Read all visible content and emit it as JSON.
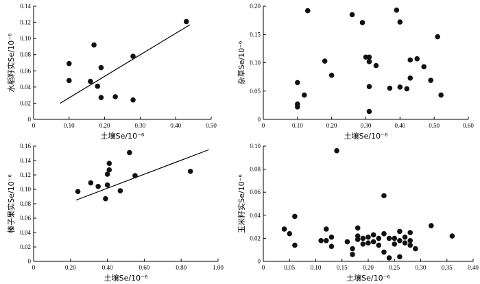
{
  "chart_data": [
    {
      "type": "scatter",
      "xlabel": "土壤Se/10⁻⁶",
      "ylabel": "水稻籽实Se/10⁻⁶",
      "xlim": [
        0,
        0.5
      ],
      "ylim": [
        0,
        0.14
      ],
      "xticks": [
        0,
        0.1,
        0.2,
        0.3,
        0.4,
        0.5
      ],
      "xtick_labels": [
        "0",
        "0.10",
        "0.20",
        "0.30",
        "0.40",
        "0.50"
      ],
      "yticks": [
        0,
        0.02,
        0.04,
        0.06,
        0.08,
        0.1,
        0.12,
        0.14
      ],
      "ytick_labels": [
        "0",
        "0.02",
        "0.04",
        "0.06",
        "0.08",
        "0.10",
        "0.12",
        "0.14"
      ],
      "points": [
        [
          0.1,
          0.069
        ],
        [
          0.1,
          0.048
        ],
        [
          0.17,
          0.092
        ],
        [
          0.16,
          0.047
        ],
        [
          0.18,
          0.041
        ],
        [
          0.19,
          0.064
        ],
        [
          0.19,
          0.027
        ],
        [
          0.23,
          0.028
        ],
        [
          0.28,
          0.078
        ],
        [
          0.28,
          0.024
        ],
        [
          0.43,
          0.121
        ]
      ],
      "trendline": [
        [
          0.075,
          0.02
        ],
        [
          0.44,
          0.117
        ]
      ]
    },
    {
      "type": "scatter",
      "xlabel": "土壤Se/10⁻⁶",
      "ylabel": "杂草Se/10⁻⁶",
      "xlim": [
        0,
        0.6
      ],
      "ylim": [
        0,
        0.2
      ],
      "xticks": [
        0,
        0.1,
        0.2,
        0.3,
        0.4,
        0.5,
        0.6
      ],
      "xtick_labels": [
        "0",
        "0.10",
        "0.20",
        "0.30",
        "0.40",
        "0.50",
        "0.60"
      ],
      "yticks": [
        0,
        0.05,
        0.1,
        0.15,
        0.2
      ],
      "ytick_labels": [
        "0",
        "0.05",
        "0.10",
        "0.15",
        "0.20"
      ],
      "points": [
        [
          0.1,
          0.065
        ],
        [
          0.1,
          0.027
        ],
        [
          0.1,
          0.022
        ],
        [
          0.12,
          0.043
        ],
        [
          0.13,
          0.192
        ],
        [
          0.18,
          0.103
        ],
        [
          0.2,
          0.078
        ],
        [
          0.26,
          0.185
        ],
        [
          0.29,
          0.171
        ],
        [
          0.3,
          0.11
        ],
        [
          0.31,
          0.11
        ],
        [
          0.31,
          0.102
        ],
        [
          0.31,
          0.058
        ],
        [
          0.31,
          0.014
        ],
        [
          0.33,
          0.095
        ],
        [
          0.37,
          0.055
        ],
        [
          0.39,
          0.193
        ],
        [
          0.4,
          0.172
        ],
        [
          0.4,
          0.057
        ],
        [
          0.42,
          0.054
        ],
        [
          0.43,
          0.105
        ],
        [
          0.43,
          0.073
        ],
        [
          0.45,
          0.107
        ],
        [
          0.47,
          0.093
        ],
        [
          0.49,
          0.069
        ],
        [
          0.51,
          0.146
        ],
        [
          0.52,
          0.043
        ]
      ]
    },
    {
      "type": "scatter",
      "xlabel": "土壤Se/10⁻⁶",
      "ylabel": "榛子果实Se/10⁻⁶",
      "xlim": [
        0,
        1.0
      ],
      "ylim": [
        0,
        0.16
      ],
      "xticks": [
        0,
        0.2,
        0.4,
        0.6,
        0.8,
        1.0
      ],
      "xtick_labels": [
        "0",
        "0.20",
        "0.40",
        "0.60",
        "0.80",
        "1.00"
      ],
      "yticks": [
        0,
        0.02,
        0.04,
        0.06,
        0.08,
        0.1,
        0.12,
        0.14,
        0.16
      ],
      "ytick_labels": [
        "0",
        "0.02",
        "0.04",
        "0.06",
        "0.08",
        "0.10",
        "0.12",
        "0.14",
        "0.16"
      ],
      "points": [
        [
          0.24,
          0.097
        ],
        [
          0.31,
          0.109
        ],
        [
          0.35,
          0.104
        ],
        [
          0.39,
          0.087
        ],
        [
          0.4,
          0.106
        ],
        [
          0.4,
          0.121
        ],
        [
          0.41,
          0.127
        ],
        [
          0.41,
          0.136
        ],
        [
          0.47,
          0.098
        ],
        [
          0.52,
          0.151
        ],
        [
          0.55,
          0.119
        ],
        [
          0.85,
          0.125
        ]
      ],
      "trendline": [
        [
          0.23,
          0.085
        ],
        [
          0.95,
          0.155
        ]
      ]
    },
    {
      "type": "scatter",
      "xlabel": "土壤Se/10⁻⁶",
      "ylabel": "玉米籽实Se/10⁻⁶",
      "xlim": [
        0,
        0.4
      ],
      "ylim": [
        0,
        0.1
      ],
      "xticks": [
        0,
        0.05,
        0.1,
        0.15,
        0.2,
        0.25,
        0.3,
        0.35,
        0.4
      ],
      "xtick_labels": [
        "0",
        "0.05",
        "0.10",
        "0.15",
        "0.20",
        "0.25",
        "0.30",
        "0.35",
        "0.40"
      ],
      "yticks": [
        0,
        0.02,
        0.04,
        0.06,
        0.08,
        0.1
      ],
      "ytick_labels": [
        "0",
        "0.02",
        "0.04",
        "0.06",
        "0.08",
        "0.10"
      ],
      "points": [
        [
          0.04,
          0.028
        ],
        [
          0.05,
          0.024
        ],
        [
          0.06,
          0.039
        ],
        [
          0.06,
          0.014
        ],
        [
          0.11,
          0.018
        ],
        [
          0.12,
          0.018
        ],
        [
          0.12,
          0.028
        ],
        [
          0.13,
          0.021
        ],
        [
          0.13,
          0.013
        ],
        [
          0.14,
          0.096
        ],
        [
          0.16,
          0.017
        ],
        [
          0.17,
          0.006
        ],
        [
          0.17,
          0.011
        ],
        [
          0.18,
          0.019
        ],
        [
          0.18,
          0.022
        ],
        [
          0.18,
          0.029
        ],
        [
          0.19,
          0.015
        ],
        [
          0.19,
          0.02
        ],
        [
          0.2,
          0.021
        ],
        [
          0.2,
          0.016
        ],
        [
          0.21,
          0.017
        ],
        [
          0.21,
          0.023
        ],
        [
          0.22,
          0.02
        ],
        [
          0.22,
          0.014
        ],
        [
          0.23,
          0.024
        ],
        [
          0.23,
          0.057
        ],
        [
          0.23,
          0.008
        ],
        [
          0.24,
          0.02
        ],
        [
          0.24,
          0.003
        ],
        [
          0.25,
          0.02
        ],
        [
          0.25,
          0.015
        ],
        [
          0.26,
          0.026
        ],
        [
          0.26,
          0.018
        ],
        [
          0.26,
          0.004
        ],
        [
          0.27,
          0.016
        ],
        [
          0.27,
          0.021
        ],
        [
          0.28,
          0.014
        ],
        [
          0.28,
          0.025
        ],
        [
          0.28,
          0.018
        ],
        [
          0.29,
          0.011
        ],
        [
          0.32,
          0.031
        ],
        [
          0.36,
          0.022
        ]
      ]
    }
  ]
}
